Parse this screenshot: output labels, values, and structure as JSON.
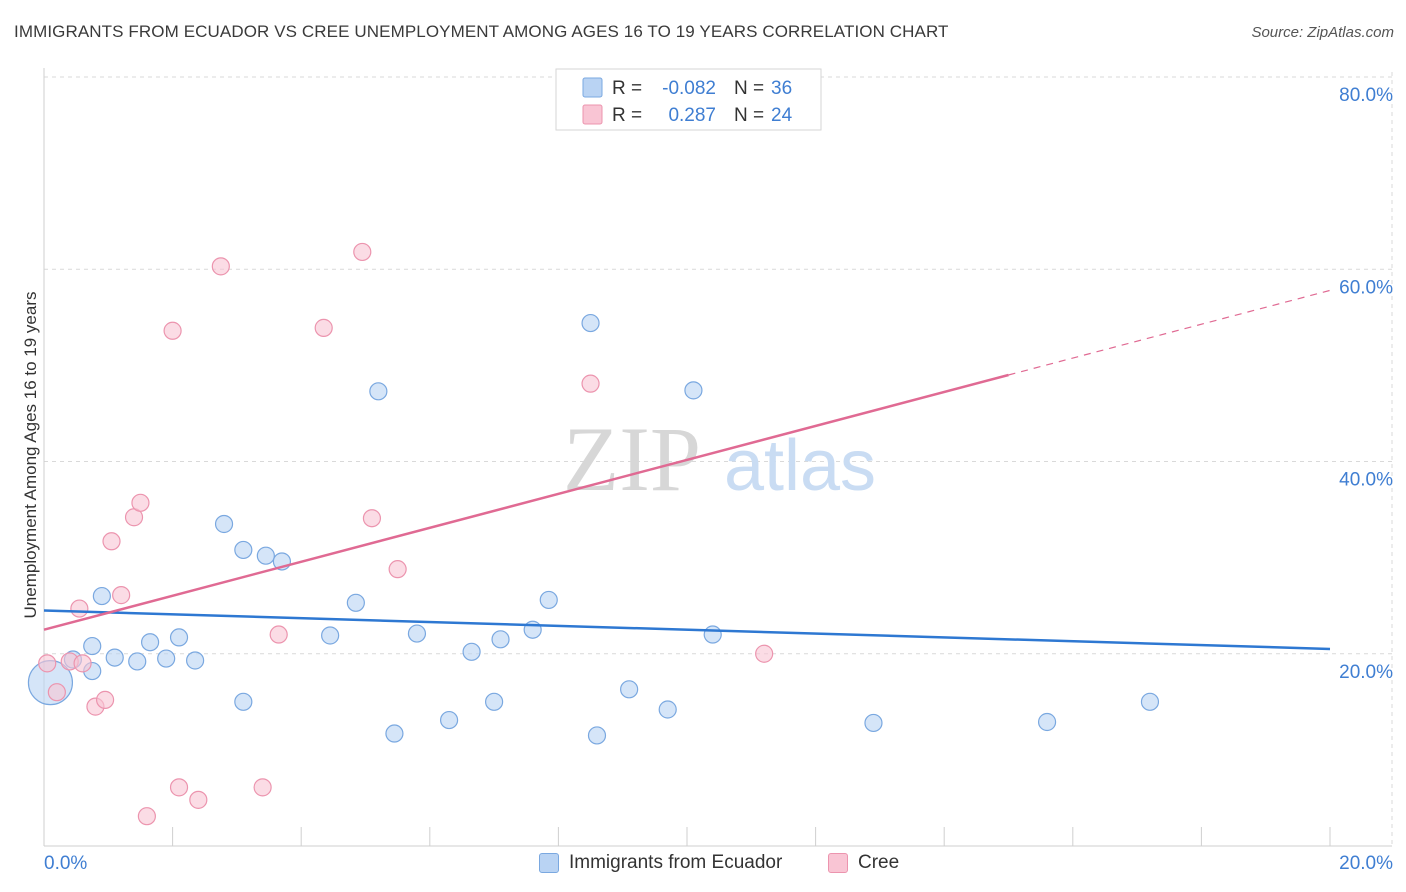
{
  "title": "IMMIGRANTS FROM ECUADOR VS CREE UNEMPLOYMENT AMONG AGES 16 TO 19 YEARS CORRELATION CHART",
  "source": "Source: ZipAtlas.com",
  "watermark": {
    "zip": "ZIP",
    "atlas": "atlas"
  },
  "colors": {
    "blue_fill": "#b9d3f3",
    "blue_stroke": "#7aa8e0",
    "blue_line": "#2e78d2",
    "pink_fill": "#f9c5d4",
    "pink_stroke": "#ec94ae",
    "pink_line": "#e06a93",
    "axis_text": "#3f7ed2",
    "grid": "#d9d9d9"
  },
  "legend_top": {
    "rows": [
      {
        "r_label": "R = ",
        "r_value": "-0.082",
        "n_label": "N = ",
        "n_value": "36",
        "series": "blue"
      },
      {
        "r_label": "R = ",
        "r_value": "0.287",
        "n_label": "N = ",
        "n_value": "24",
        "series": "pink"
      }
    ]
  },
  "chart_data": {
    "type": "scatter",
    "title": "IMMIGRANTS FROM ECUADOR VS CREE UNEMPLOYMENT AMONG AGES 16 TO 19 YEARS CORRELATION CHART",
    "xlabel": "",
    "ylabel": "Unemployment Among Ages 16 to 19 years",
    "xlim": [
      0,
      20
    ],
    "ylim": [
      0,
      80
    ],
    "x_tick_labels": [
      "0.0%",
      "20.0%"
    ],
    "y_ticks": [
      20,
      40,
      60,
      80
    ],
    "y_tick_labels": [
      "20.0%",
      "40.0%",
      "60.0%",
      "80.0%"
    ],
    "grid": true,
    "legend_position": "top-center",
    "series": [
      {
        "name": "Immigrants from Ecuador",
        "color": "blue",
        "r": -0.082,
        "n": 36,
        "points": [
          [
            0.1,
            17.0
          ],
          [
            0.9,
            26.0
          ],
          [
            0.45,
            19.4
          ],
          [
            0.75,
            20.8
          ],
          [
            0.75,
            18.2
          ],
          [
            1.65,
            21.2
          ],
          [
            1.1,
            19.6
          ],
          [
            1.45,
            19.2
          ],
          [
            1.9,
            19.5
          ],
          [
            2.1,
            21.7
          ],
          [
            2.35,
            19.3
          ],
          [
            2.8,
            33.5
          ],
          [
            3.1,
            30.8
          ],
          [
            3.45,
            30.2
          ],
          [
            3.7,
            29.6
          ],
          [
            4.45,
            21.9
          ],
          [
            4.85,
            25.3
          ],
          [
            5.2,
            47.3
          ],
          [
            5.45,
            11.7
          ],
          [
            5.8,
            22.1
          ],
          [
            6.3,
            13.1
          ],
          [
            6.65,
            20.2
          ],
          [
            7.0,
            15.0
          ],
          [
            7.1,
            21.5
          ],
          [
            7.6,
            22.5
          ],
          [
            7.85,
            25.6
          ],
          [
            8.5,
            54.4
          ],
          [
            8.6,
            11.5
          ],
          [
            9.1,
            16.3
          ],
          [
            9.7,
            14.2
          ],
          [
            10.1,
            47.4
          ],
          [
            10.4,
            22.0
          ],
          [
            12.9,
            12.8
          ],
          [
            15.6,
            12.9
          ],
          [
            17.2,
            15.0
          ],
          [
            3.1,
            15.0
          ]
        ]
      },
      {
        "name": "Cree",
        "color": "pink",
        "r": 0.287,
        "n": 24,
        "points": [
          [
            0.05,
            19.0
          ],
          [
            0.2,
            16.0
          ],
          [
            0.4,
            19.2
          ],
          [
            0.55,
            24.7
          ],
          [
            0.8,
            14.5
          ],
          [
            0.95,
            15.2
          ],
          [
            1.05,
            31.7
          ],
          [
            1.2,
            26.1
          ],
          [
            1.4,
            34.2
          ],
          [
            1.5,
            35.7
          ],
          [
            1.6,
            3.1
          ],
          [
            2.0,
            53.6
          ],
          [
            2.1,
            6.1
          ],
          [
            2.4,
            4.8
          ],
          [
            2.75,
            60.3
          ],
          [
            3.4,
            6.1
          ],
          [
            3.65,
            22.0
          ],
          [
            4.35,
            53.9
          ],
          [
            4.95,
            61.8
          ],
          [
            5.1,
            34.1
          ],
          [
            5.5,
            28.8
          ],
          [
            8.5,
            48.1
          ],
          [
            11.2,
            20.0
          ],
          [
            0.6,
            19.0
          ]
        ]
      }
    ],
    "trend_lines": [
      {
        "series": "Immigrants from Ecuador",
        "x": [
          0,
          20
        ],
        "y": [
          24.5,
          20.5
        ],
        "style": "solid"
      },
      {
        "series": "Cree",
        "x": [
          0,
          15.0
        ],
        "y": [
          22.5,
          49.0
        ],
        "style": "solid"
      },
      {
        "series": "Cree",
        "x": [
          15.0,
          20.0
        ],
        "y": [
          49.0,
          57.8
        ],
        "style": "dashed"
      }
    ]
  },
  "legend_bottom": [
    {
      "label": "Immigrants from Ecuador",
      "color": "blue"
    },
    {
      "label": "Cree",
      "color": "pink"
    }
  ]
}
